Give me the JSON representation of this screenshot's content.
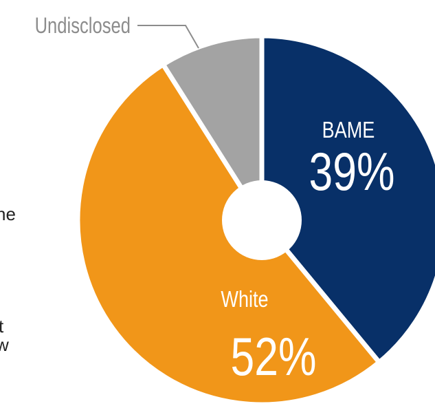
{
  "chart_data": {
    "type": "pie",
    "title": "",
    "categories": [
      "BAME",
      "White",
      "Undisclosed"
    ],
    "values": [
      39,
      52,
      9
    ],
    "value_labels": [
      "39%",
      "52%",
      ""
    ],
    "colors": [
      "#083068",
      "#f19619",
      "#a3a3a3"
    ],
    "slice_separator_color": "#ffffff",
    "donut_hole": true,
    "callout_label": "Undisclosed"
  },
  "side_text": {
    "fragment_1": "ne",
    "fragment_2": "t",
    "fragment_3": "w"
  }
}
